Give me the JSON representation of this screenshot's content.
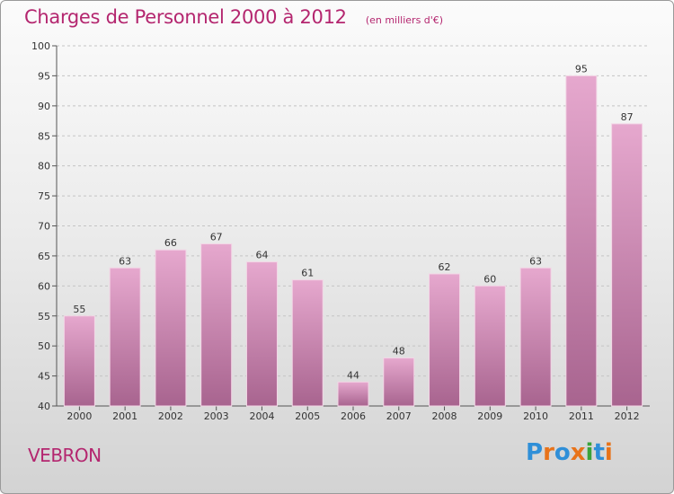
{
  "header": {
    "title": "Charges de Personnel 2000 à 2012",
    "subtitle": "(en milliers d'€)"
  },
  "place_label": "VEBRON",
  "logo": {
    "text": "Proxiti",
    "letter_colors": [
      "#2f8fd8",
      "#e8731a",
      "#2f8fd8",
      "#e8731a",
      "#3aa33a",
      "#2f8fd8",
      "#e8731a"
    ]
  },
  "colors": {
    "accent": "#b4266f",
    "bar_top": "#e6a8ce",
    "bar_bottom": "#a8648f"
  },
  "chart_data": {
    "type": "bar",
    "categories": [
      "2000",
      "2001",
      "2002",
      "2003",
      "2004",
      "2005",
      "2006",
      "2007",
      "2008",
      "2009",
      "2010",
      "2011",
      "2012"
    ],
    "values": [
      55,
      63,
      66,
      67,
      64,
      61,
      44,
      48,
      62,
      60,
      63,
      95,
      87
    ],
    "ylim": [
      40,
      100
    ],
    "yticks": [
      40,
      45,
      50,
      55,
      60,
      65,
      70,
      75,
      80,
      85,
      90,
      95,
      100
    ],
    "grid": "horizontal dashed",
    "data_labels": true
  }
}
